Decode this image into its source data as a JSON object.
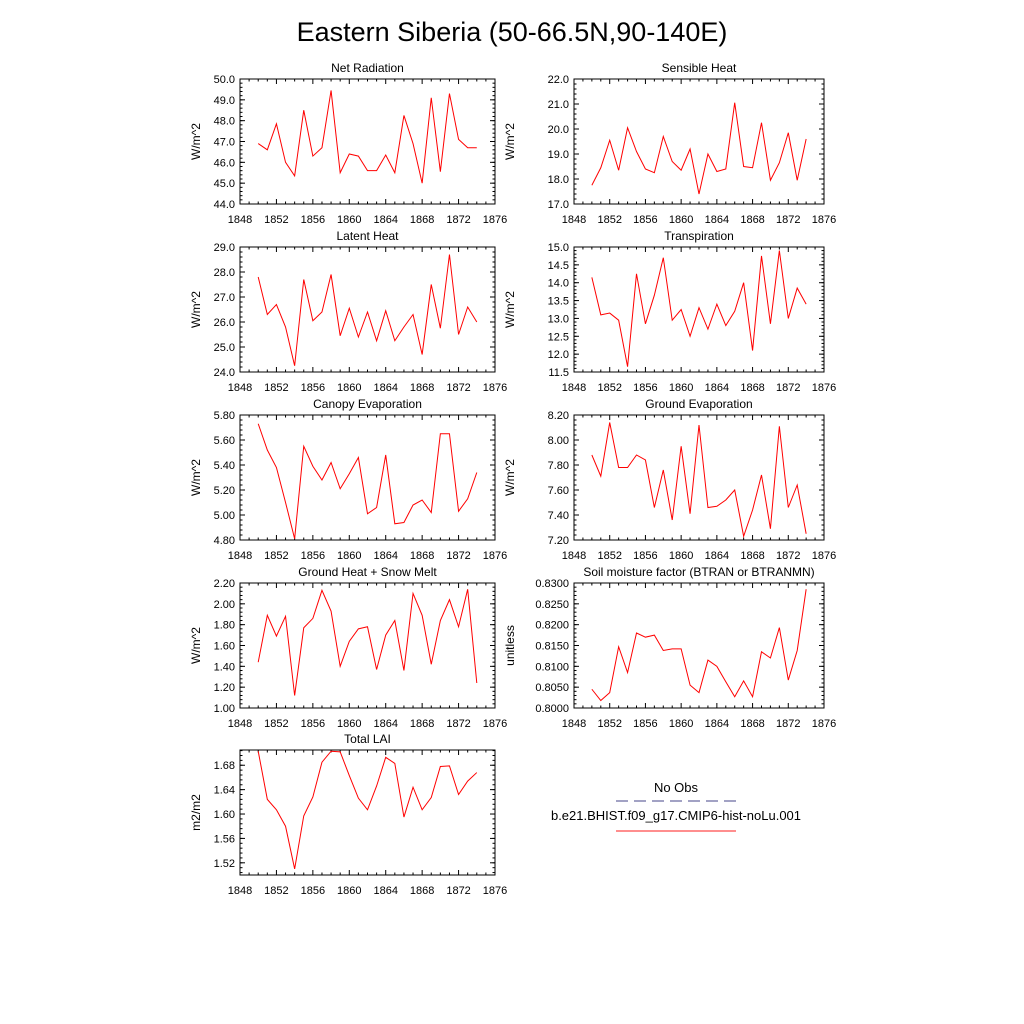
{
  "title": "Eastern Siberia (50-66.5N,90-140E)",
  "legend": {
    "items": [
      {
        "label": "No Obs",
        "style": "dashed",
        "color": "#6a6aa0"
      },
      {
        "label": "b.e21.BHIST.f09_g17.CMIP6-hist-noLu.001",
        "style": "solid",
        "color": "#ff4a4a"
      }
    ]
  },
  "chart_data": [
    {
      "type": "line",
      "title": "Net Radiation",
      "ylabel": "W/m^2",
      "xlim": [
        1848,
        1876
      ],
      "xticks": [
        1848,
        1852,
        1856,
        1860,
        1864,
        1868,
        1872,
        1876
      ],
      "xtick_labels": [
        "1848",
        "1852",
        "1856",
        "1860",
        "1864",
        "1868",
        "1872",
        "1876"
      ],
      "ylim": [
        44.0,
        50.0
      ],
      "yticks": [
        44.0,
        45.0,
        46.0,
        47.0,
        48.0,
        49.0,
        50.0
      ],
      "ytick_labels": [
        "44.0",
        "45.0",
        "46.0",
        "47.0",
        "48.0",
        "49.0",
        "50.0"
      ],
      "x": [
        1850,
        1851,
        1852,
        1853,
        1854,
        1855,
        1856,
        1857,
        1858,
        1859,
        1860,
        1861,
        1862,
        1863,
        1864,
        1865,
        1866,
        1867,
        1868,
        1869,
        1870,
        1871,
        1872,
        1873,
        1874
      ],
      "series": [
        {
          "values": [
            46.9,
            46.6,
            47.85,
            46.0,
            45.35,
            48.5,
            46.3,
            46.7,
            49.45,
            45.5,
            46.4,
            46.3,
            45.6,
            45.6,
            46.35,
            45.5,
            48.25,
            46.9,
            45.0,
            49.1,
            45.55,
            49.3,
            47.1,
            46.7,
            46.7
          ],
          "color": "#ff0000"
        }
      ]
    },
    {
      "type": "line",
      "title": "Sensible Heat",
      "ylabel": "W/m^2",
      "xlim": [
        1848,
        1876
      ],
      "xticks": [
        1848,
        1852,
        1856,
        1860,
        1864,
        1868,
        1872,
        1876
      ],
      "xtick_labels": [
        "1848",
        "1852",
        "1856",
        "1860",
        "1864",
        "1868",
        "1872",
        "1876"
      ],
      "ylim": [
        17.0,
        22.0
      ],
      "yticks": [
        17.0,
        18.0,
        19.0,
        20.0,
        21.0,
        22.0
      ],
      "ytick_labels": [
        "17.0",
        "18.0",
        "19.0",
        "20.0",
        "21.0",
        "22.0"
      ],
      "x": [
        1850,
        1851,
        1852,
        1853,
        1854,
        1855,
        1856,
        1857,
        1858,
        1859,
        1860,
        1861,
        1862,
        1863,
        1864,
        1865,
        1866,
        1867,
        1868,
        1869,
        1870,
        1871,
        1872,
        1873,
        1874
      ],
      "series": [
        {
          "values": [
            17.75,
            18.45,
            19.55,
            18.35,
            20.05,
            19.1,
            18.4,
            18.25,
            19.7,
            18.7,
            18.35,
            19.2,
            17.4,
            19.0,
            18.3,
            18.4,
            21.05,
            18.5,
            18.45,
            20.25,
            17.95,
            18.65,
            19.85,
            17.95,
            19.6
          ],
          "color": "#ff0000"
        }
      ]
    },
    {
      "type": "line",
      "title": "Latent Heat",
      "ylabel": "W/m^2",
      "xlim": [
        1848,
        1876
      ],
      "xticks": [
        1848,
        1852,
        1856,
        1860,
        1864,
        1868,
        1872,
        1876
      ],
      "xtick_labels": [
        "1848",
        "1852",
        "1856",
        "1860",
        "1864",
        "1868",
        "1872",
        "1876"
      ],
      "ylim": [
        24.0,
        29.0
      ],
      "yticks": [
        24.0,
        25.0,
        26.0,
        27.0,
        28.0,
        29.0
      ],
      "ytick_labels": [
        "24.0",
        "25.0",
        "26.0",
        "27.0",
        "28.0",
        "29.0"
      ],
      "x": [
        1850,
        1851,
        1852,
        1853,
        1854,
        1855,
        1856,
        1857,
        1858,
        1859,
        1860,
        1861,
        1862,
        1863,
        1864,
        1865,
        1866,
        1867,
        1868,
        1869,
        1870,
        1871,
        1872,
        1873,
        1874
      ],
      "series": [
        {
          "values": [
            27.8,
            26.3,
            26.7,
            25.8,
            24.25,
            27.7,
            26.05,
            26.4,
            27.9,
            25.45,
            26.55,
            25.4,
            26.4,
            25.25,
            26.45,
            25.25,
            25.8,
            26.3,
            24.7,
            27.5,
            25.75,
            28.7,
            25.5,
            26.6,
            26.0
          ],
          "color": "#ff0000"
        }
      ]
    },
    {
      "type": "line",
      "title": "Transpiration",
      "ylabel": "W/m^2",
      "xlim": [
        1848,
        1876
      ],
      "xticks": [
        1848,
        1852,
        1856,
        1860,
        1864,
        1868,
        1872,
        1876
      ],
      "xtick_labels": [
        "1848",
        "1852",
        "1856",
        "1860",
        "1864",
        "1868",
        "1872",
        "1876"
      ],
      "ylim": [
        11.5,
        15.0
      ],
      "yticks": [
        11.5,
        12.0,
        12.5,
        13.0,
        13.5,
        14.0,
        14.5,
        15.0
      ],
      "ytick_labels": [
        "11.5",
        "12.0",
        "12.5",
        "13.0",
        "13.5",
        "14.0",
        "14.5",
        "15.0"
      ],
      "x": [
        1850,
        1851,
        1852,
        1853,
        1854,
        1855,
        1856,
        1857,
        1858,
        1859,
        1860,
        1861,
        1862,
        1863,
        1864,
        1865,
        1866,
        1867,
        1868,
        1869,
        1870,
        1871,
        1872,
        1873,
        1874
      ],
      "series": [
        {
          "values": [
            14.15,
            13.1,
            13.15,
            12.95,
            11.65,
            14.25,
            12.85,
            13.65,
            14.7,
            12.95,
            13.25,
            12.5,
            13.3,
            12.7,
            13.4,
            12.8,
            13.2,
            14.0,
            12.1,
            14.75,
            12.85,
            14.9,
            13.0,
            13.85,
            13.4
          ],
          "color": "#ff0000"
        }
      ]
    },
    {
      "type": "line",
      "title": "Canopy Evaporation",
      "ylabel": "W/m^2",
      "xlim": [
        1848,
        1876
      ],
      "xticks": [
        1848,
        1852,
        1856,
        1860,
        1864,
        1868,
        1872,
        1876
      ],
      "xtick_labels": [
        "1848",
        "1852",
        "1856",
        "1860",
        "1864",
        "1868",
        "1872",
        "1876"
      ],
      "ylim": [
        4.8,
        5.8
      ],
      "yticks": [
        4.8,
        5.0,
        5.2,
        5.4,
        5.6,
        5.8
      ],
      "ytick_labels": [
        "4.80",
        "5.00",
        "5.20",
        "5.40",
        "5.60",
        "5.80"
      ],
      "x": [
        1850,
        1851,
        1852,
        1853,
        1854,
        1855,
        1856,
        1857,
        1858,
        1859,
        1860,
        1861,
        1862,
        1863,
        1864,
        1865,
        1866,
        1867,
        1868,
        1869,
        1870,
        1871,
        1872,
        1873,
        1874
      ],
      "series": [
        {
          "values": [
            5.73,
            5.52,
            5.38,
            5.1,
            4.81,
            5.55,
            5.39,
            5.28,
            5.42,
            5.21,
            5.33,
            5.46,
            5.01,
            5.06,
            5.48,
            4.93,
            4.94,
            5.08,
            5.12,
            5.02,
            5.65,
            5.65,
            5.03,
            5.13,
            5.34
          ],
          "color": "#ff0000"
        }
      ]
    },
    {
      "type": "line",
      "title": "Ground Evaporation",
      "ylabel": "W/m^2",
      "xlim": [
        1848,
        1876
      ],
      "xticks": [
        1848,
        1852,
        1856,
        1860,
        1864,
        1868,
        1872,
        1876
      ],
      "xtick_labels": [
        "1848",
        "1852",
        "1856",
        "1860",
        "1864",
        "1868",
        "1872",
        "1876"
      ],
      "ylim": [
        7.2,
        8.2
      ],
      "yticks": [
        7.2,
        7.4,
        7.6,
        7.8,
        8.0,
        8.2
      ],
      "ytick_labels": [
        "7.20",
        "7.40",
        "7.60",
        "7.80",
        "8.00",
        "8.20"
      ],
      "x": [
        1850,
        1851,
        1852,
        1853,
        1854,
        1855,
        1856,
        1857,
        1858,
        1859,
        1860,
        1861,
        1862,
        1863,
        1864,
        1865,
        1866,
        1867,
        1868,
        1869,
        1870,
        1871,
        1872,
        1873,
        1874
      ],
      "series": [
        {
          "values": [
            7.88,
            7.71,
            8.14,
            7.78,
            7.78,
            7.88,
            7.84,
            7.46,
            7.76,
            7.36,
            7.95,
            7.41,
            8.12,
            7.46,
            7.47,
            7.52,
            7.6,
            7.23,
            7.44,
            7.72,
            7.29,
            8.11,
            7.46,
            7.64,
            7.25
          ],
          "color": "#ff0000"
        }
      ]
    },
    {
      "type": "line",
      "title": "Ground Heat + Snow Melt",
      "ylabel": "W/m^2",
      "xlim": [
        1848,
        1876
      ],
      "xticks": [
        1848,
        1852,
        1856,
        1860,
        1864,
        1868,
        1872,
        1876
      ],
      "xtick_labels": [
        "1848",
        "1852",
        "1856",
        "1860",
        "1864",
        "1868",
        "1872",
        "1876"
      ],
      "ylim": [
        1.0,
        2.2
      ],
      "yticks": [
        1.0,
        1.2,
        1.4,
        1.6,
        1.8,
        2.0,
        2.2
      ],
      "ytick_labels": [
        "1.00",
        "1.20",
        "1.40",
        "1.60",
        "1.80",
        "2.00",
        "2.20"
      ],
      "x": [
        1850,
        1851,
        1852,
        1853,
        1854,
        1855,
        1856,
        1857,
        1858,
        1859,
        1860,
        1861,
        1862,
        1863,
        1864,
        1865,
        1866,
        1867,
        1868,
        1869,
        1870,
        1871,
        1872,
        1873,
        1874
      ],
      "series": [
        {
          "values": [
            1.44,
            1.89,
            1.69,
            1.88,
            1.12,
            1.77,
            1.86,
            2.13,
            1.93,
            1.4,
            1.64,
            1.76,
            1.78,
            1.37,
            1.7,
            1.84,
            1.36,
            2.1,
            1.89,
            1.42,
            1.84,
            2.04,
            1.78,
            2.14,
            1.24
          ],
          "color": "#ff0000"
        }
      ]
    },
    {
      "type": "line",
      "title": "Soil moisture factor (BTRAN or BTRANMN)",
      "ylabel": "unitless",
      "xlim": [
        1848,
        1876
      ],
      "xticks": [
        1848,
        1852,
        1856,
        1860,
        1864,
        1868,
        1872,
        1876
      ],
      "xtick_labels": [
        "1848",
        "1852",
        "1856",
        "1860",
        "1864",
        "1868",
        "1872",
        "1876"
      ],
      "ylim": [
        0.8,
        0.83
      ],
      "yticks": [
        0.8,
        0.805,
        0.81,
        0.815,
        0.82,
        0.825,
        0.83
      ],
      "ytick_labels": [
        "0.8000",
        "0.8050",
        "0.8100",
        "0.8150",
        "0.8200",
        "0.8250",
        "0.8300"
      ],
      "x": [
        1850,
        1851,
        1852,
        1853,
        1854,
        1855,
        1856,
        1857,
        1858,
        1859,
        1860,
        1861,
        1862,
        1863,
        1864,
        1865,
        1866,
        1867,
        1868,
        1869,
        1870,
        1871,
        1872,
        1873,
        1874
      ],
      "series": [
        {
          "values": [
            0.8045,
            0.8018,
            0.8037,
            0.8147,
            0.8085,
            0.818,
            0.817,
            0.8175,
            0.8138,
            0.8142,
            0.8142,
            0.8055,
            0.8037,
            0.8115,
            0.81,
            0.8063,
            0.8027,
            0.8065,
            0.8027,
            0.8135,
            0.812,
            0.8193,
            0.8067,
            0.8138,
            0.8285
          ],
          "color": "#ff0000"
        }
      ]
    },
    {
      "type": "line",
      "title": "Total LAI",
      "ylabel": "m2/m2",
      "xlim": [
        1848,
        1876
      ],
      "xticks": [
        1848,
        1852,
        1856,
        1860,
        1864,
        1868,
        1872,
        1876
      ],
      "xtick_labels": [
        "1848",
        "1852",
        "1856",
        "1860",
        "1864",
        "1868",
        "1872",
        "1876"
      ],
      "ylim": [
        1.5,
        1.705
      ],
      "yticks": [
        1.52,
        1.56,
        1.6,
        1.64,
        1.68
      ],
      "ytick_labels": [
        "1.52",
        "1.56",
        "1.60",
        "1.64",
        "1.68"
      ],
      "x": [
        1850,
        1851,
        1852,
        1853,
        1854,
        1855,
        1856,
        1857,
        1858,
        1859,
        1860,
        1861,
        1862,
        1863,
        1864,
        1865,
        1866,
        1867,
        1868,
        1869,
        1870,
        1871,
        1872,
        1873,
        1874
      ],
      "series": [
        {
          "values": [
            1.703,
            1.624,
            1.607,
            1.58,
            1.51,
            1.597,
            1.628,
            1.685,
            1.703,
            1.702,
            1.663,
            1.626,
            1.607,
            1.646,
            1.693,
            1.683,
            1.595,
            1.644,
            1.607,
            1.627,
            1.678,
            1.679,
            1.632,
            1.654,
            1.668
          ],
          "color": "#ff0000"
        }
      ]
    }
  ]
}
